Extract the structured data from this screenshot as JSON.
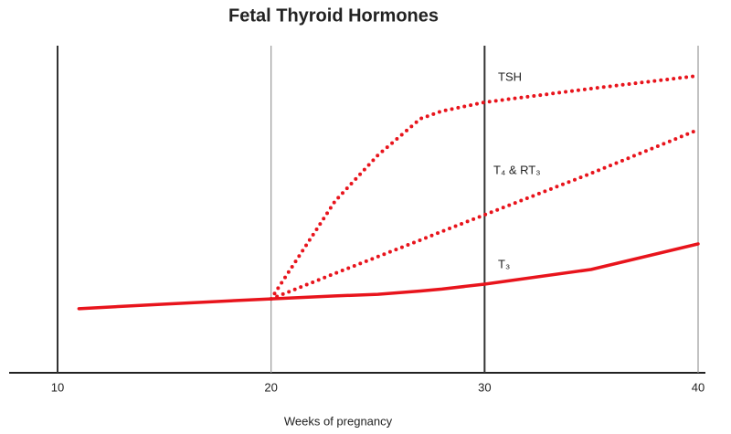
{
  "chart_data": {
    "type": "line",
    "title": "Fetal Thyroid Hormones",
    "x_label": "Weeks of pregnancy",
    "x": [
      11,
      15,
      20,
      23,
      25,
      27,
      28,
      30,
      35,
      40
    ],
    "series": [
      {
        "name": "TSH",
        "color": "#e8141c",
        "style": "dotted",
        "values": [
          null,
          null,
          22.6,
          52.5,
          66.5,
          77.7,
          80,
          82.7,
          86.9,
          90.8
        ]
      },
      {
        "name": "T₄ & RT₃",
        "color": "#e8141c",
        "style": "dotted",
        "values": [
          null,
          null,
          22.6,
          30.4,
          35.5,
          40.6,
          43.2,
          48.3,
          61,
          74.3
        ]
      },
      {
        "name": "T₃",
        "color": "#e8141c",
        "style": "solid",
        "values": [
          19.6,
          21,
          22.6,
          23.5,
          24,
          25,
          25.6,
          27.1,
          31.6,
          39.4
        ]
      }
    ],
    "xlim": [
      10,
      40
    ],
    "xticks": [
      10,
      20,
      30,
      40
    ],
    "ylim": [
      0,
      100
    ],
    "grid": true
  }
}
